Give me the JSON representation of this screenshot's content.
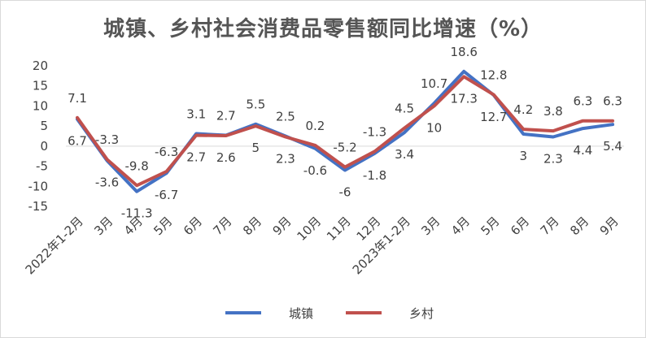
{
  "chart_data": {
    "type": "line",
    "title": "城镇、乡村社会消费品零售额同比增速（%）",
    "categories": [
      "2022年1-2月",
      "3月",
      "4月",
      "5月",
      "6月",
      "7月",
      "8月",
      "9月",
      "10月",
      "11月",
      "12月",
      "2023年1-2月",
      "3月",
      "4月",
      "5月",
      "6月",
      "7月",
      "8月",
      "9月"
    ],
    "series": [
      {
        "name": "城镇",
        "color": "#4472c4",
        "values": [
          6.7,
          -3.6,
          -11.3,
          -6.7,
          3.1,
          2.7,
          5.5,
          2.5,
          -0.6,
          -6,
          -1.8,
          3.4,
          10.7,
          18.6,
          12.7,
          3,
          2.3,
          4.4,
          5.4
        ]
      },
      {
        "name": "乡村",
        "color": "#c0504d",
        "values": [
          7.1,
          -3.3,
          -9.8,
          -6.3,
          2.7,
          2.6,
          5,
          2.3,
          0.2,
          -5.2,
          -1.3,
          4.5,
          10,
          17.3,
          12.8,
          4.2,
          3.8,
          6.3,
          6.3
        ]
      }
    ],
    "ylim": [
      -15,
      20
    ],
    "yticks": [
      20,
      15,
      10,
      5,
      0,
      -5,
      -10,
      -15
    ],
    "ytick_labels": [
      "20",
      "15",
      "10",
      "5",
      "0",
      "-5",
      "-10",
      "-15"
    ],
    "data_labels": {
      "城镇": [
        "6.7",
        "-3.6",
        "-11.3",
        "-6.7",
        "3.1",
        "2.7",
        "5.5",
        "2.5",
        "-0.6",
        "-6",
        "-1.8",
        "3.4",
        "10.7",
        "18.6",
        "12.7",
        "3",
        "2.3",
        "4.4",
        "5.4"
      ],
      "乡村": [
        "7.1",
        "-3.3",
        "-9.8",
        "-6.3",
        "2.7",
        "2.6",
        "5",
        "2.3",
        "0.2",
        "-5.2",
        "-1.3",
        "4.5",
        "10",
        "17.3",
        "12.8",
        "4.2",
        "3.8",
        "6.3",
        "6.3"
      ]
    },
    "grid": false,
    "legend": "bottom"
  }
}
